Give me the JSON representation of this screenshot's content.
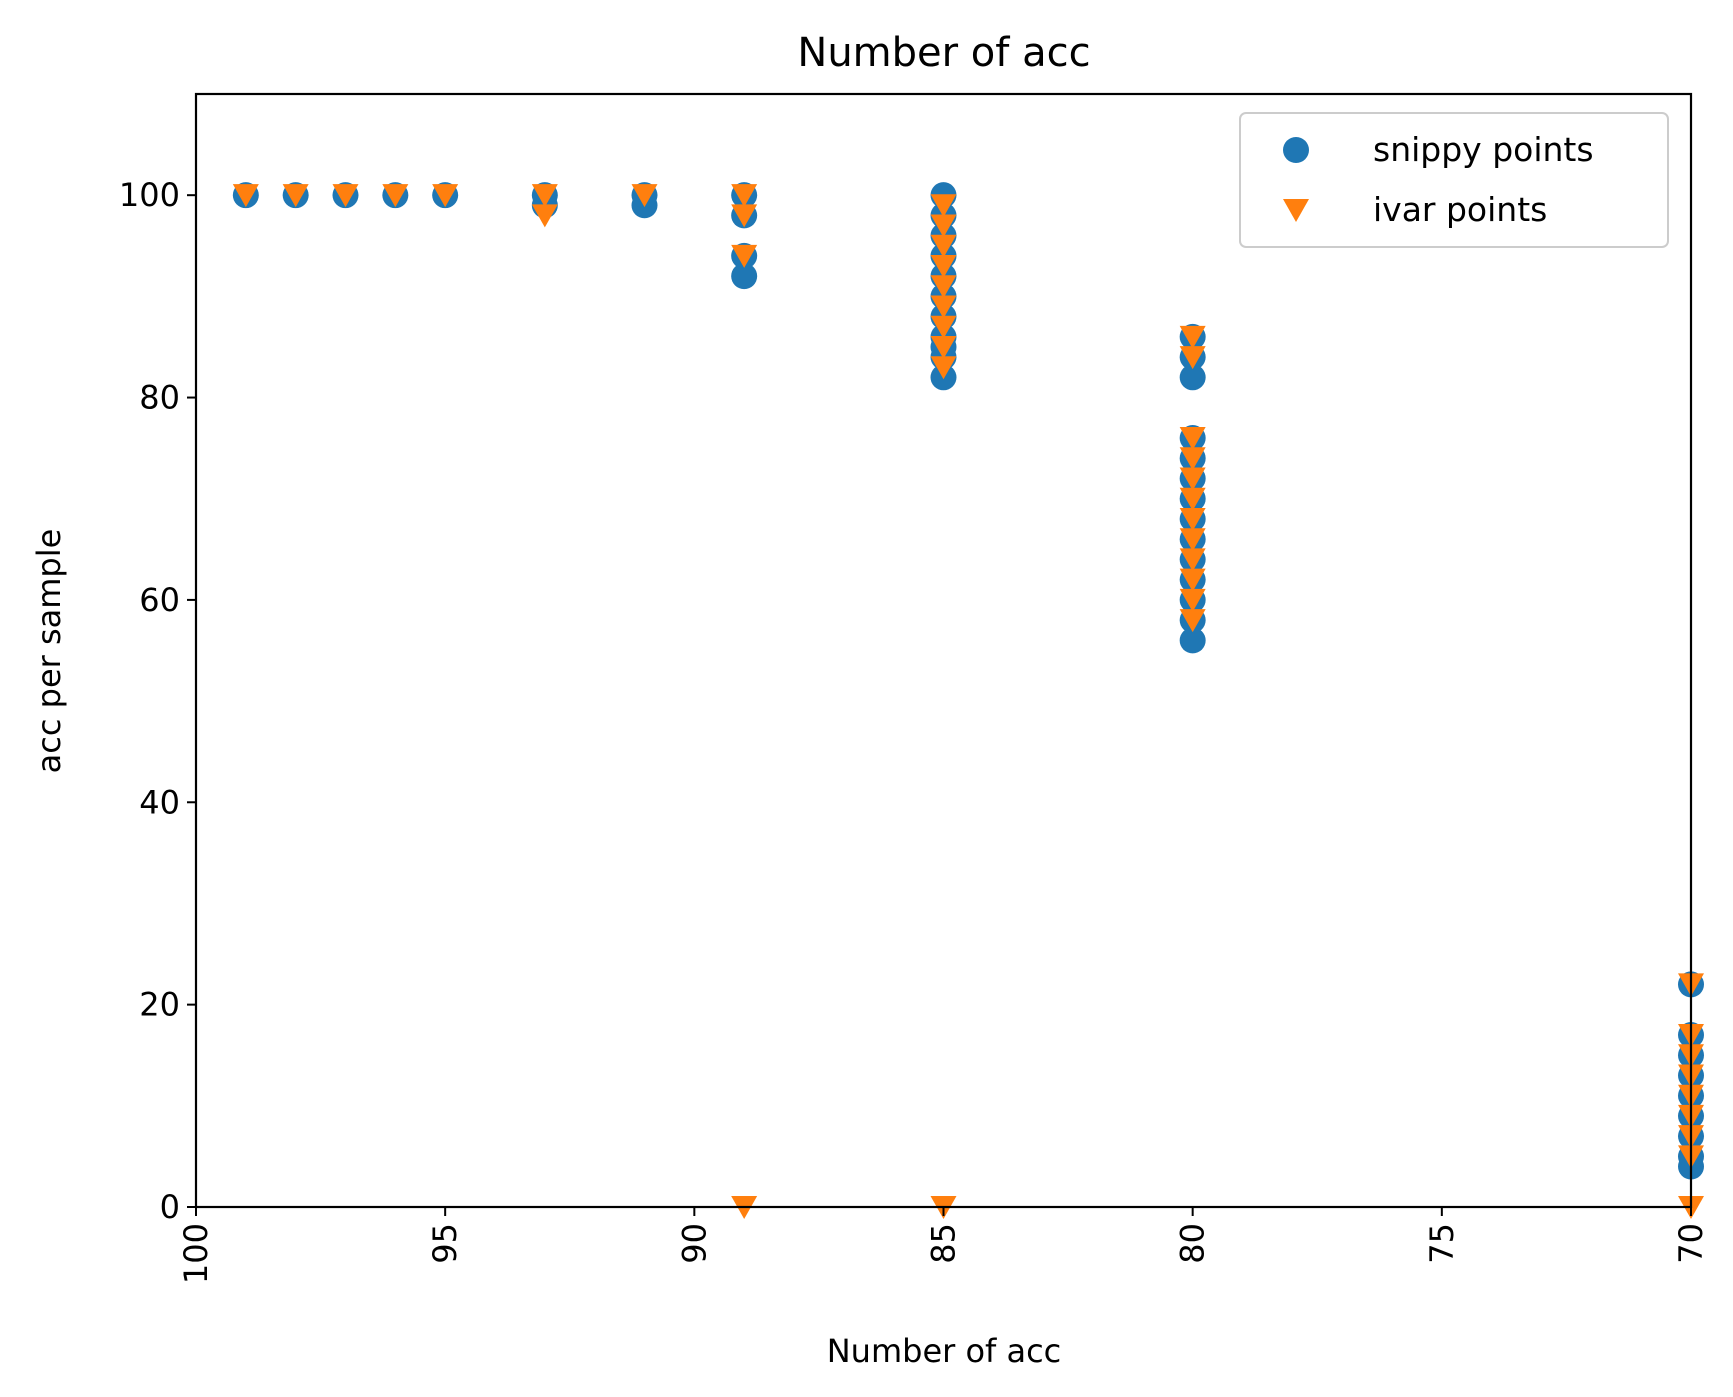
{
  "chart_data": {
    "type": "scatter",
    "title": "Number of acc",
    "xlabel": "Number of acc",
    "ylabel": "acc per sample",
    "xlim": [
      100,
      70
    ],
    "ylim": [
      0,
      110
    ],
    "x_inverted": true,
    "xticks": [
      100,
      95,
      90,
      85,
      80,
      75,
      70
    ],
    "yticks": [
      0,
      20,
      40,
      60,
      80,
      100
    ],
    "xtick_rotation": "vertical",
    "grid": false,
    "legend_position": "top-right",
    "series": [
      {
        "name": "snippy points",
        "marker": "circle",
        "color": "#1f77b4",
        "points": [
          [
            99,
            100
          ],
          [
            98,
            100
          ],
          [
            97,
            100
          ],
          [
            96,
            100
          ],
          [
            95,
            100
          ],
          [
            93,
            99
          ],
          [
            93,
            100
          ],
          [
            91,
            99
          ],
          [
            91,
            100
          ],
          [
            89,
            100
          ],
          [
            89,
            98
          ],
          [
            89,
            94
          ],
          [
            89,
            92
          ],
          [
            85,
            100
          ],
          [
            85,
            98
          ],
          [
            85,
            96
          ],
          [
            85,
            94
          ],
          [
            85,
            92
          ],
          [
            85,
            90
          ],
          [
            85,
            88
          ],
          [
            85,
            86
          ],
          [
            85,
            85
          ],
          [
            85,
            84
          ],
          [
            85,
            82
          ],
          [
            80,
            86
          ],
          [
            80,
            84
          ],
          [
            80,
            82
          ],
          [
            80,
            76
          ],
          [
            80,
            74
          ],
          [
            80,
            72
          ],
          [
            80,
            70
          ],
          [
            80,
            68
          ],
          [
            80,
            66
          ],
          [
            80,
            64
          ],
          [
            80,
            62
          ],
          [
            80,
            60
          ],
          [
            80,
            58
          ],
          [
            80,
            56
          ],
          [
            70,
            22
          ],
          [
            70,
            17
          ],
          [
            70,
            15
          ],
          [
            70,
            13
          ],
          [
            70,
            11
          ],
          [
            70,
            9
          ],
          [
            70,
            7
          ],
          [
            70,
            5
          ],
          [
            70,
            4
          ]
        ]
      },
      {
        "name": "ivar points",
        "marker": "triangle_down",
        "color": "#ff7f0e",
        "points": [
          [
            99,
            100
          ],
          [
            98,
            100
          ],
          [
            97,
            100
          ],
          [
            96,
            100
          ],
          [
            95,
            100
          ],
          [
            93,
            100
          ],
          [
            93,
            98
          ],
          [
            91,
            100
          ],
          [
            89,
            100
          ],
          [
            89,
            98
          ],
          [
            89,
            94
          ],
          [
            89,
            0
          ],
          [
            85,
            99
          ],
          [
            85,
            97
          ],
          [
            85,
            95
          ],
          [
            85,
            93
          ],
          [
            85,
            91
          ],
          [
            85,
            89
          ],
          [
            85,
            87
          ],
          [
            85,
            85
          ],
          [
            85,
            83
          ],
          [
            85,
            0
          ],
          [
            80,
            86
          ],
          [
            80,
            84
          ],
          [
            80,
            76
          ],
          [
            80,
            74
          ],
          [
            80,
            72
          ],
          [
            80,
            70
          ],
          [
            80,
            68
          ],
          [
            80,
            66
          ],
          [
            80,
            64
          ],
          [
            80,
            62
          ],
          [
            80,
            60
          ],
          [
            80,
            58
          ],
          [
            70,
            22
          ],
          [
            70,
            17
          ],
          [
            70,
            15
          ],
          [
            70,
            13
          ],
          [
            70,
            11
          ],
          [
            70,
            9
          ],
          [
            70,
            7
          ],
          [
            70,
            5
          ],
          [
            70,
            0
          ]
        ]
      }
    ]
  }
}
